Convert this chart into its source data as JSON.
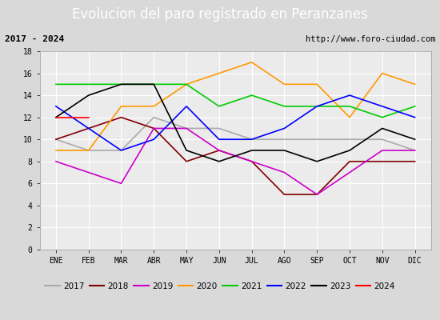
{
  "title": "Evolucion del paro registrado en Peranzanes",
  "subtitle_left": "2017 - 2024",
  "subtitle_right": "http://www.foro-ciudad.com",
  "months": [
    "ENE",
    "FEB",
    "MAR",
    "ABR",
    "MAY",
    "JUN",
    "JUL",
    "AGO",
    "SEP",
    "OCT",
    "NOV",
    "DIC"
  ],
  "series": {
    "2017": {
      "color": "#aaaaaa",
      "data": [
        10,
        9,
        9,
        12,
        11,
        11,
        10,
        10,
        10,
        10,
        10,
        9
      ]
    },
    "2018": {
      "color": "#800000",
      "data": [
        10,
        11,
        12,
        11,
        8,
        9,
        8,
        5,
        5,
        8,
        8,
        8
      ]
    },
    "2019": {
      "color": "#cc00cc",
      "data": [
        8,
        7,
        6,
        11,
        11,
        9,
        8,
        7,
        5,
        7,
        9,
        9
      ]
    },
    "2020": {
      "color": "#ff9900",
      "data": [
        9,
        9,
        13,
        13,
        15,
        16,
        17,
        15,
        15,
        12,
        16,
        15
      ]
    },
    "2021": {
      "color": "#00cc00",
      "data": [
        15,
        15,
        15,
        15,
        15,
        13,
        14,
        13,
        13,
        13,
        12,
        13
      ]
    },
    "2022": {
      "color": "#0000ff",
      "data": [
        13,
        11,
        9,
        10,
        13,
        10,
        10,
        11,
        13,
        14,
        13,
        12
      ]
    },
    "2023": {
      "color": "#000000",
      "data": [
        12,
        14,
        15,
        15,
        9,
        8,
        9,
        9,
        8,
        9,
        11,
        10
      ]
    },
    "2024": {
      "color": "#ff0000",
      "data": [
        12,
        12,
        null,
        null,
        null,
        null,
        null,
        null,
        null,
        null,
        null,
        null
      ]
    }
  },
  "ylim": [
    0,
    18
  ],
  "yticks": [
    0,
    2,
    4,
    6,
    8,
    10,
    12,
    14,
    16,
    18
  ],
  "title_bg_color": "#4472c4",
  "title_text_color": "#ffffff",
  "subtitle_bg_color": "#cccccc",
  "plot_bg_color": "#d9d9d9",
  "inner_bg_color": "#ebebeb",
  "legend_bg_color": "#e0e0e0"
}
